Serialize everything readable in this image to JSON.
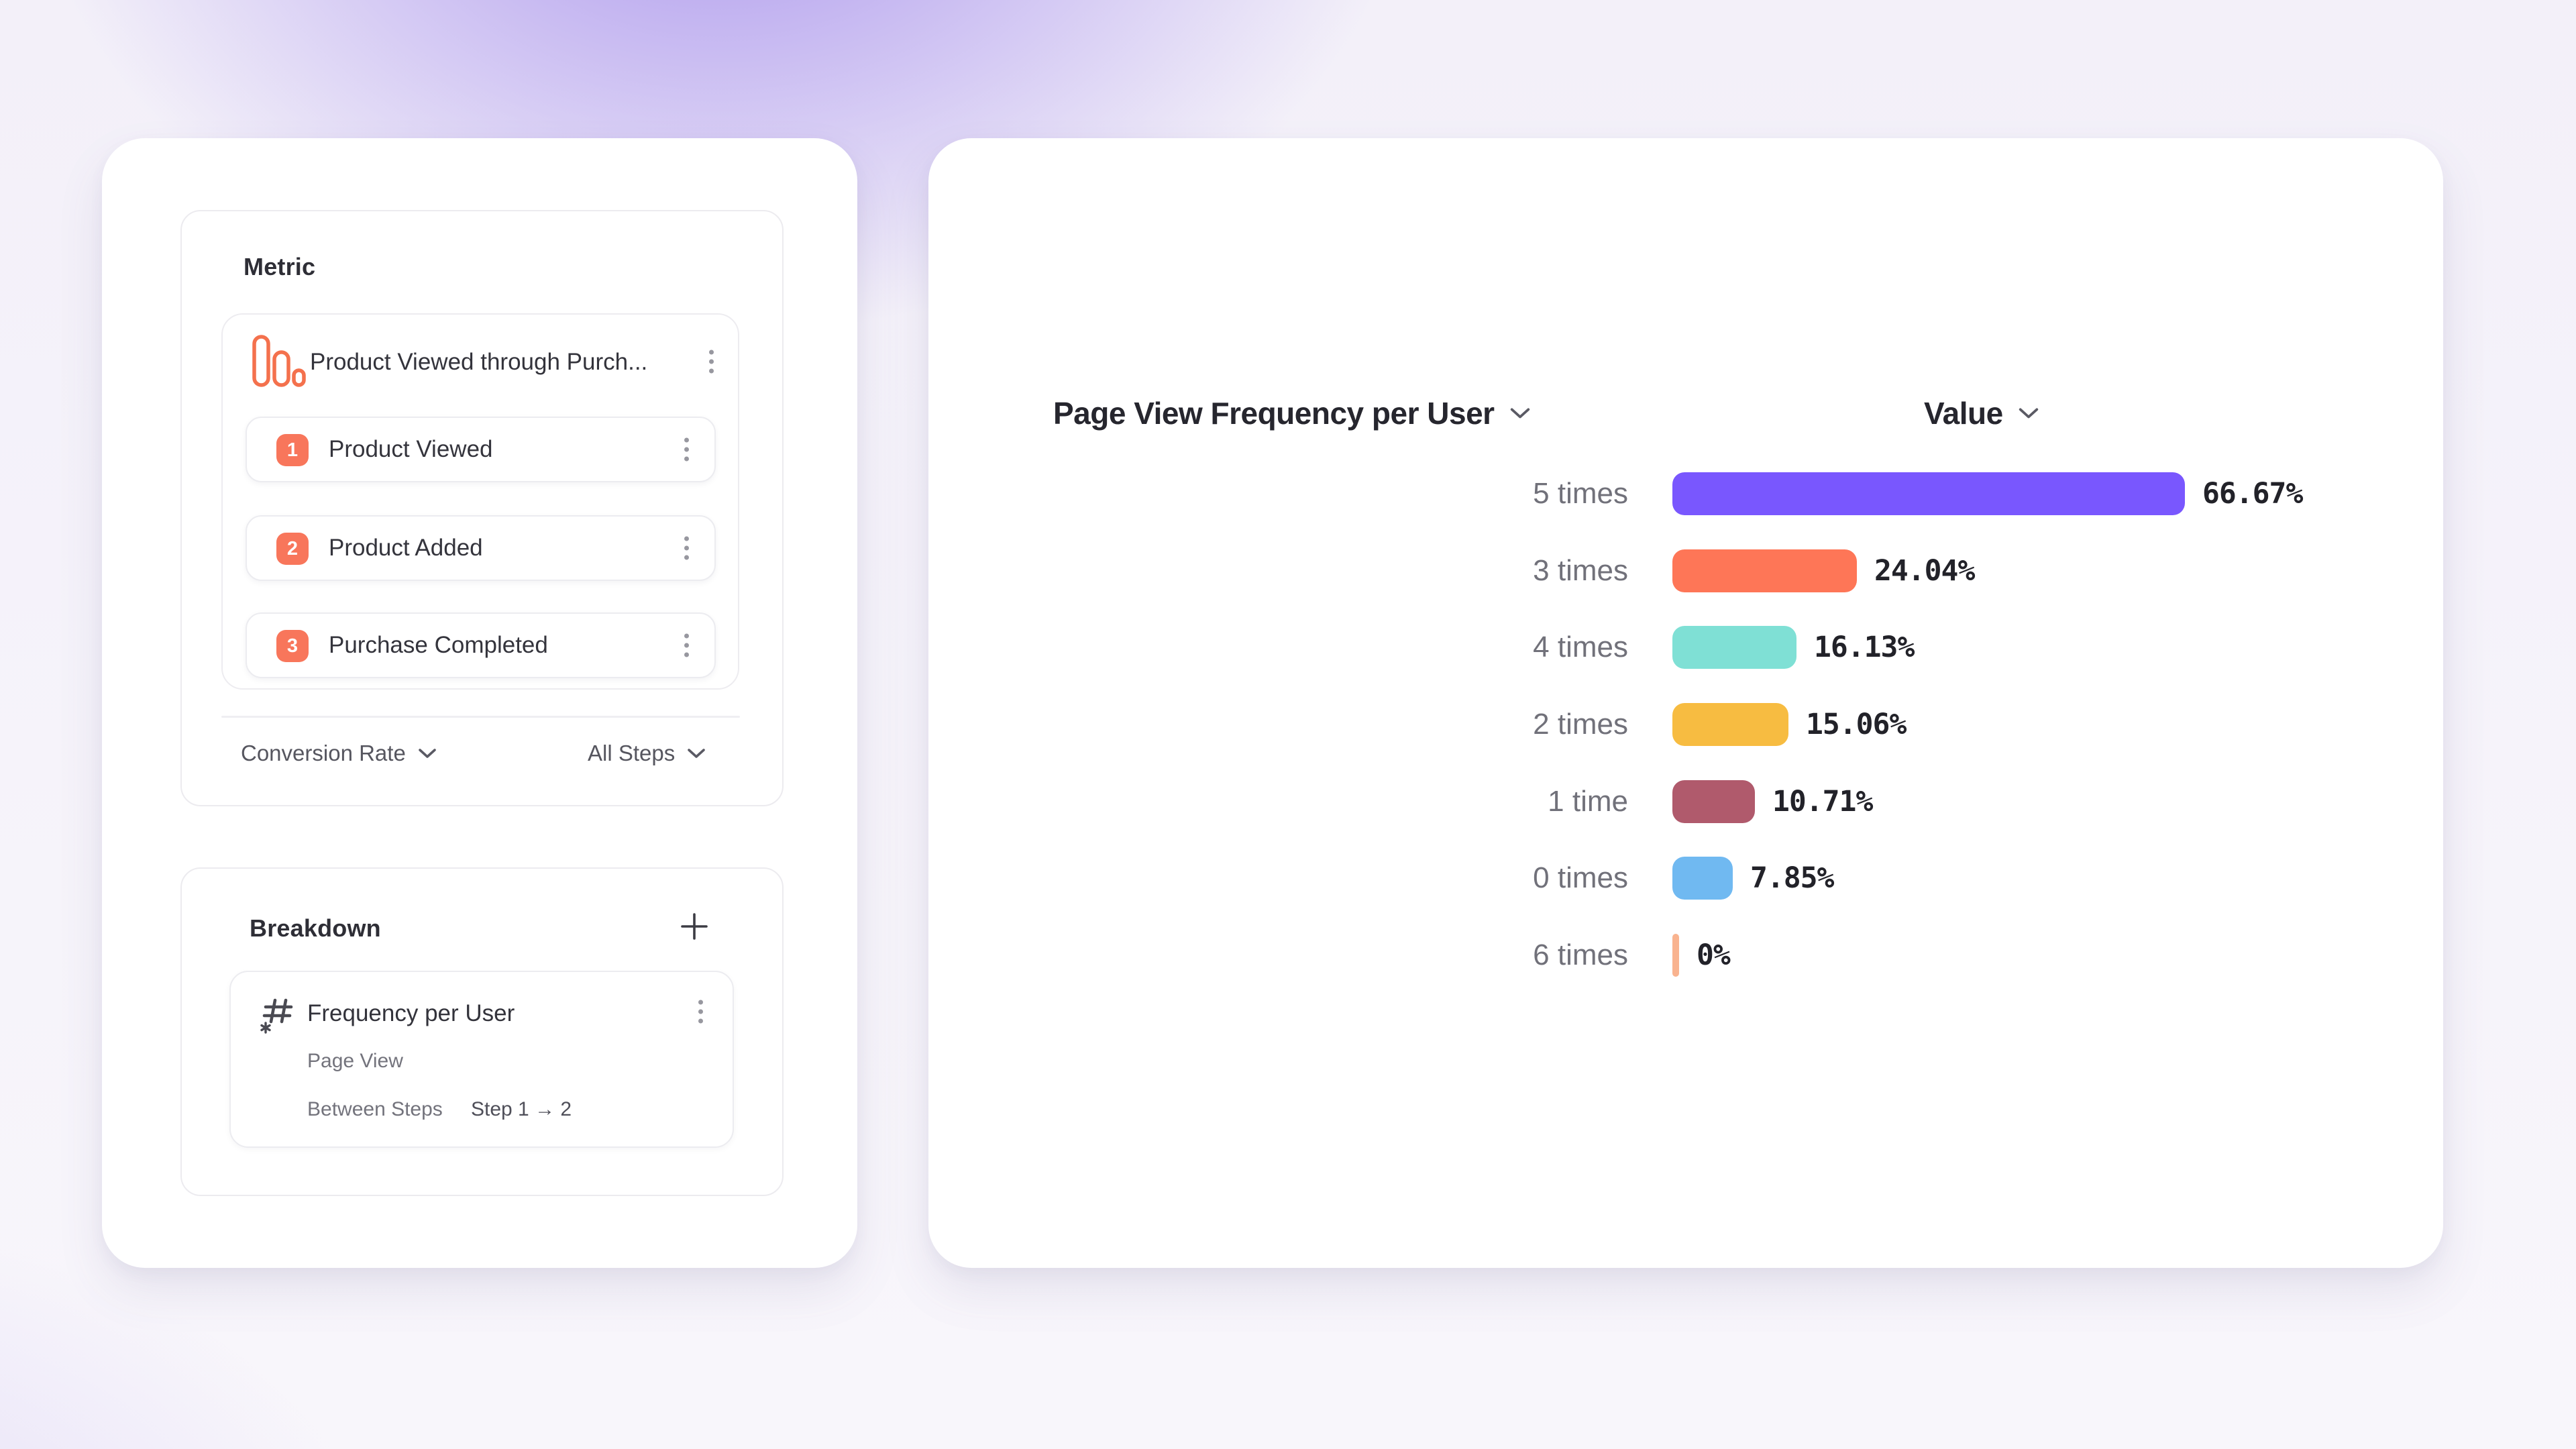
{
  "metric_panel": {
    "title": "Metric",
    "funnel": {
      "title": "Product Viewed through Purch...",
      "steps": [
        {
          "number": "1",
          "label": "Product Viewed"
        },
        {
          "number": "2",
          "label": "Product Added"
        },
        {
          "number": "3",
          "label": "Purchase Completed"
        }
      ]
    },
    "footer": {
      "measurement": "Conversion Rate",
      "steps_filter": "All Steps"
    }
  },
  "breakdown_panel": {
    "title": "Breakdown",
    "item": {
      "title": "Frequency per User",
      "event": "Page View",
      "between_steps_label": "Between Steps",
      "steps_range": "Step 1 → 2"
    }
  },
  "chart_panel": {
    "x_header": "Page View Frequency per User",
    "value_header": "Value"
  },
  "chart_data": {
    "type": "bar",
    "orientation": "horizontal",
    "title": "Page View Frequency per User",
    "series_label": "Value",
    "categories": [
      "5 times",
      "3 times",
      "4 times",
      "2 times",
      "1 time",
      "0 times",
      "6 times"
    ],
    "values": [
      66.67,
      24.04,
      16.13,
      15.06,
      10.71,
      7.85,
      0
    ],
    "value_labels": [
      "66.67%",
      "24.04%",
      "16.13%",
      "15.06%",
      "10.71%",
      "7.85%",
      "0%"
    ],
    "bar_colors": [
      "#7957FE",
      "#FE7657",
      "#7FE0D5",
      "#F7BC41",
      "#B05A6C",
      "#70B9F1",
      "#F9B38F"
    ],
    "xlim": [
      0,
      100
    ],
    "grid": false,
    "legend": false
  },
  "colors": {
    "accent_orange": "#F8765B",
    "background_purple": "#AC9BEE",
    "card_white": "#FFFFFF",
    "text_dark": "#2E2E36",
    "text_gray": "#71717A"
  }
}
